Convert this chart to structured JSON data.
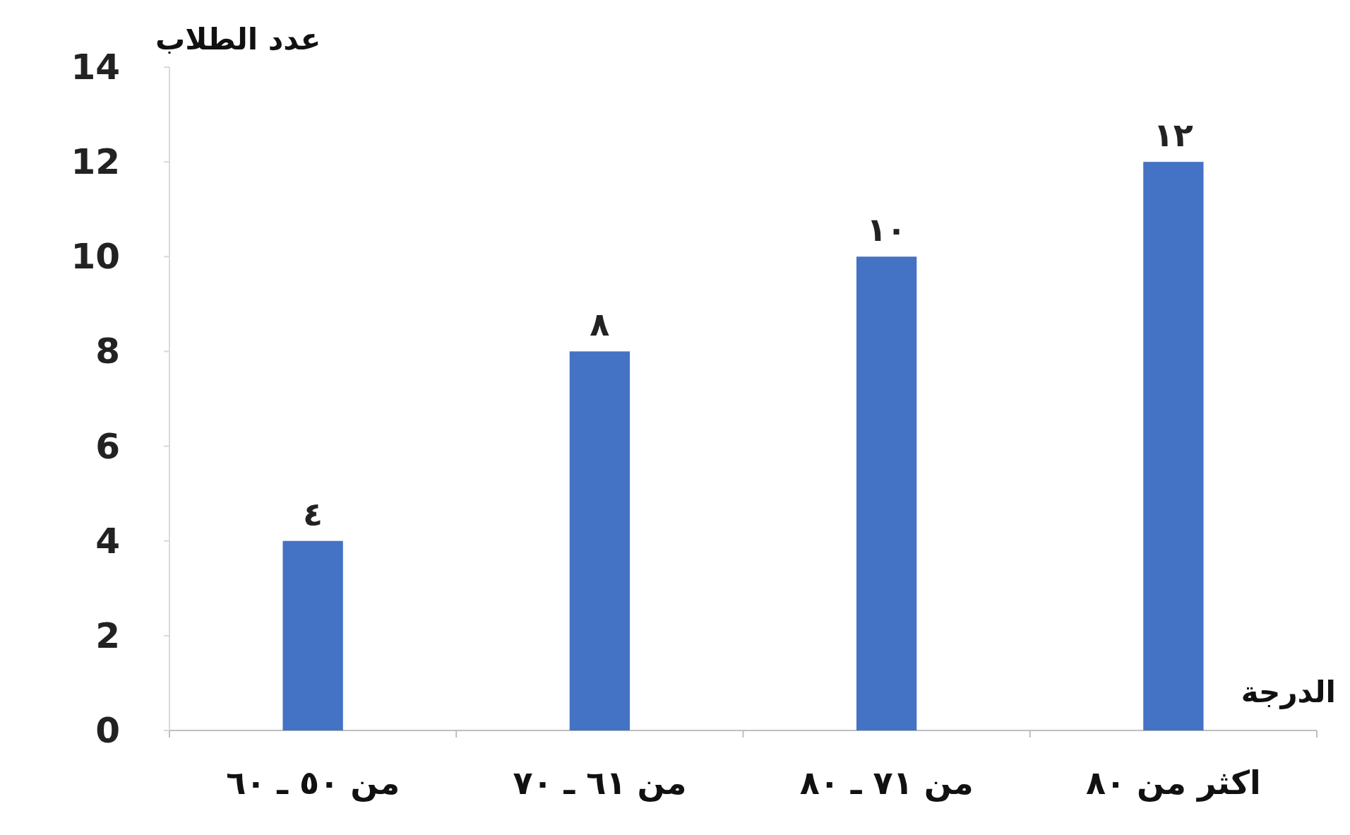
{
  "chart_data": {
    "type": "bar",
    "ylabel": "عدد الطلاب",
    "xlabel": "الدرجة",
    "categories": [
      "من ٥٠ ـ ٦٠",
      "من ٦١ ـ ٧٠",
      "من ٧١ ـ ٨٠",
      "اكثر من ٨٠"
    ],
    "values": [
      4,
      8,
      10,
      12
    ],
    "value_labels": [
      "٤",
      "٨",
      "١٠",
      "١٢"
    ],
    "color": "#4472c4",
    "ylim": [
      0,
      14
    ],
    "yticks": [
      0,
      2,
      4,
      6,
      8,
      10,
      12,
      14
    ]
  }
}
